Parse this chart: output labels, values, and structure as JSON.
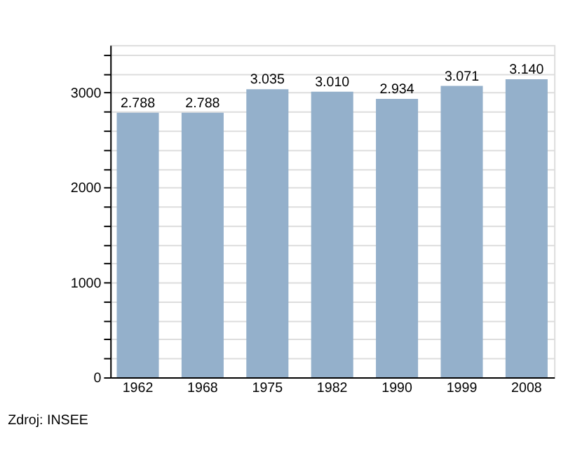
{
  "chart_data": {
    "type": "bar",
    "categories": [
      "1962",
      "1968",
      "1975",
      "1982",
      "1990",
      "1999",
      "2008"
    ],
    "values": [
      2788,
      2788,
      3035,
      3010,
      2934,
      3071,
      3140
    ],
    "value_labels": [
      "2.788",
      "2.788",
      "3.035",
      "3.010",
      "2.934",
      "3.071",
      "3.140"
    ],
    "color": "#94b0cb",
    "ylim": [
      0,
      3500
    ],
    "yticks": [
      0,
      {
        "value": 200,
        "label": null
      },
      {
        "value": 400,
        "label": null
      },
      {
        "value": 600,
        "label": null
      },
      {
        "value": 800,
        "label": null
      },
      1000,
      {
        "value": 1200,
        "label": null
      },
      {
        "value": 1400,
        "label": null
      },
      {
        "value": 1600,
        "label": null
      },
      {
        "value": 1800,
        "label": null
      },
      2000,
      {
        "value": 2200,
        "label": null
      },
      {
        "value": 2400,
        "label": null
      },
      {
        "value": 2600,
        "label": null
      },
      {
        "value": 2800,
        "label": null
      },
      3000,
      {
        "value": 3200,
        "label": null
      },
      {
        "value": 3400,
        "label": null
      }
    ],
    "grid": "y",
    "annotations": [
      "Zdroj: INSEE"
    ]
  }
}
